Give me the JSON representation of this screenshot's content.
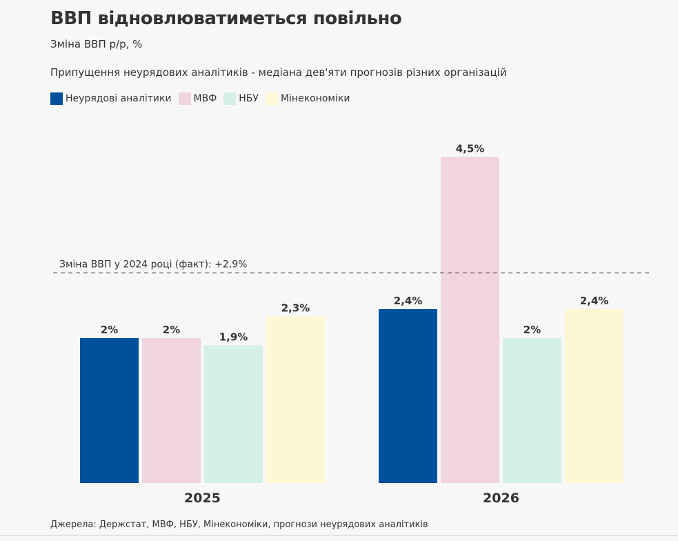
{
  "title": "ВВП відновлюватиметься повільно",
  "subtitle": "Зміна ВВП р/р, %",
  "note": "Припущення неурядових аналітиків - медіана дев'яти прогнозів різних організацій",
  "footer": "Джерела: Держстат, МВФ, НБУ, Мінекономіки, прогнози неурядових аналітиків",
  "chart_data": {
    "type": "bar",
    "categories": [
      "2025",
      "2026"
    ],
    "series": [
      {
        "name": "Неурядові аналітики",
        "color": "#00519c",
        "values": [
          2,
          2.4
        ],
        "labels": [
          "2%",
          "2,4%"
        ]
      },
      {
        "name": "МВФ",
        "color": "#f0d5de",
        "values": [
          2,
          4.5
        ],
        "labels": [
          "2%",
          "4,5%"
        ]
      },
      {
        "name": "НБУ",
        "color": "#d5f0e6",
        "values": [
          1.9,
          2
        ],
        "labels": [
          "1,9%",
          "2%"
        ]
      },
      {
        "name": "Мінекономіки",
        "color": "#fef7d5",
        "values": [
          2.3,
          2.4
        ],
        "labels": [
          "2,3%",
          "2,4%"
        ]
      }
    ],
    "reference_line": {
      "value": 2.9,
      "label": "Зміна ВВП у 2024 році (факт): +2,9%",
      "style": "dashed"
    },
    "ylim": [
      0,
      4.5
    ],
    "legend": "top-left",
    "grid": false
  }
}
